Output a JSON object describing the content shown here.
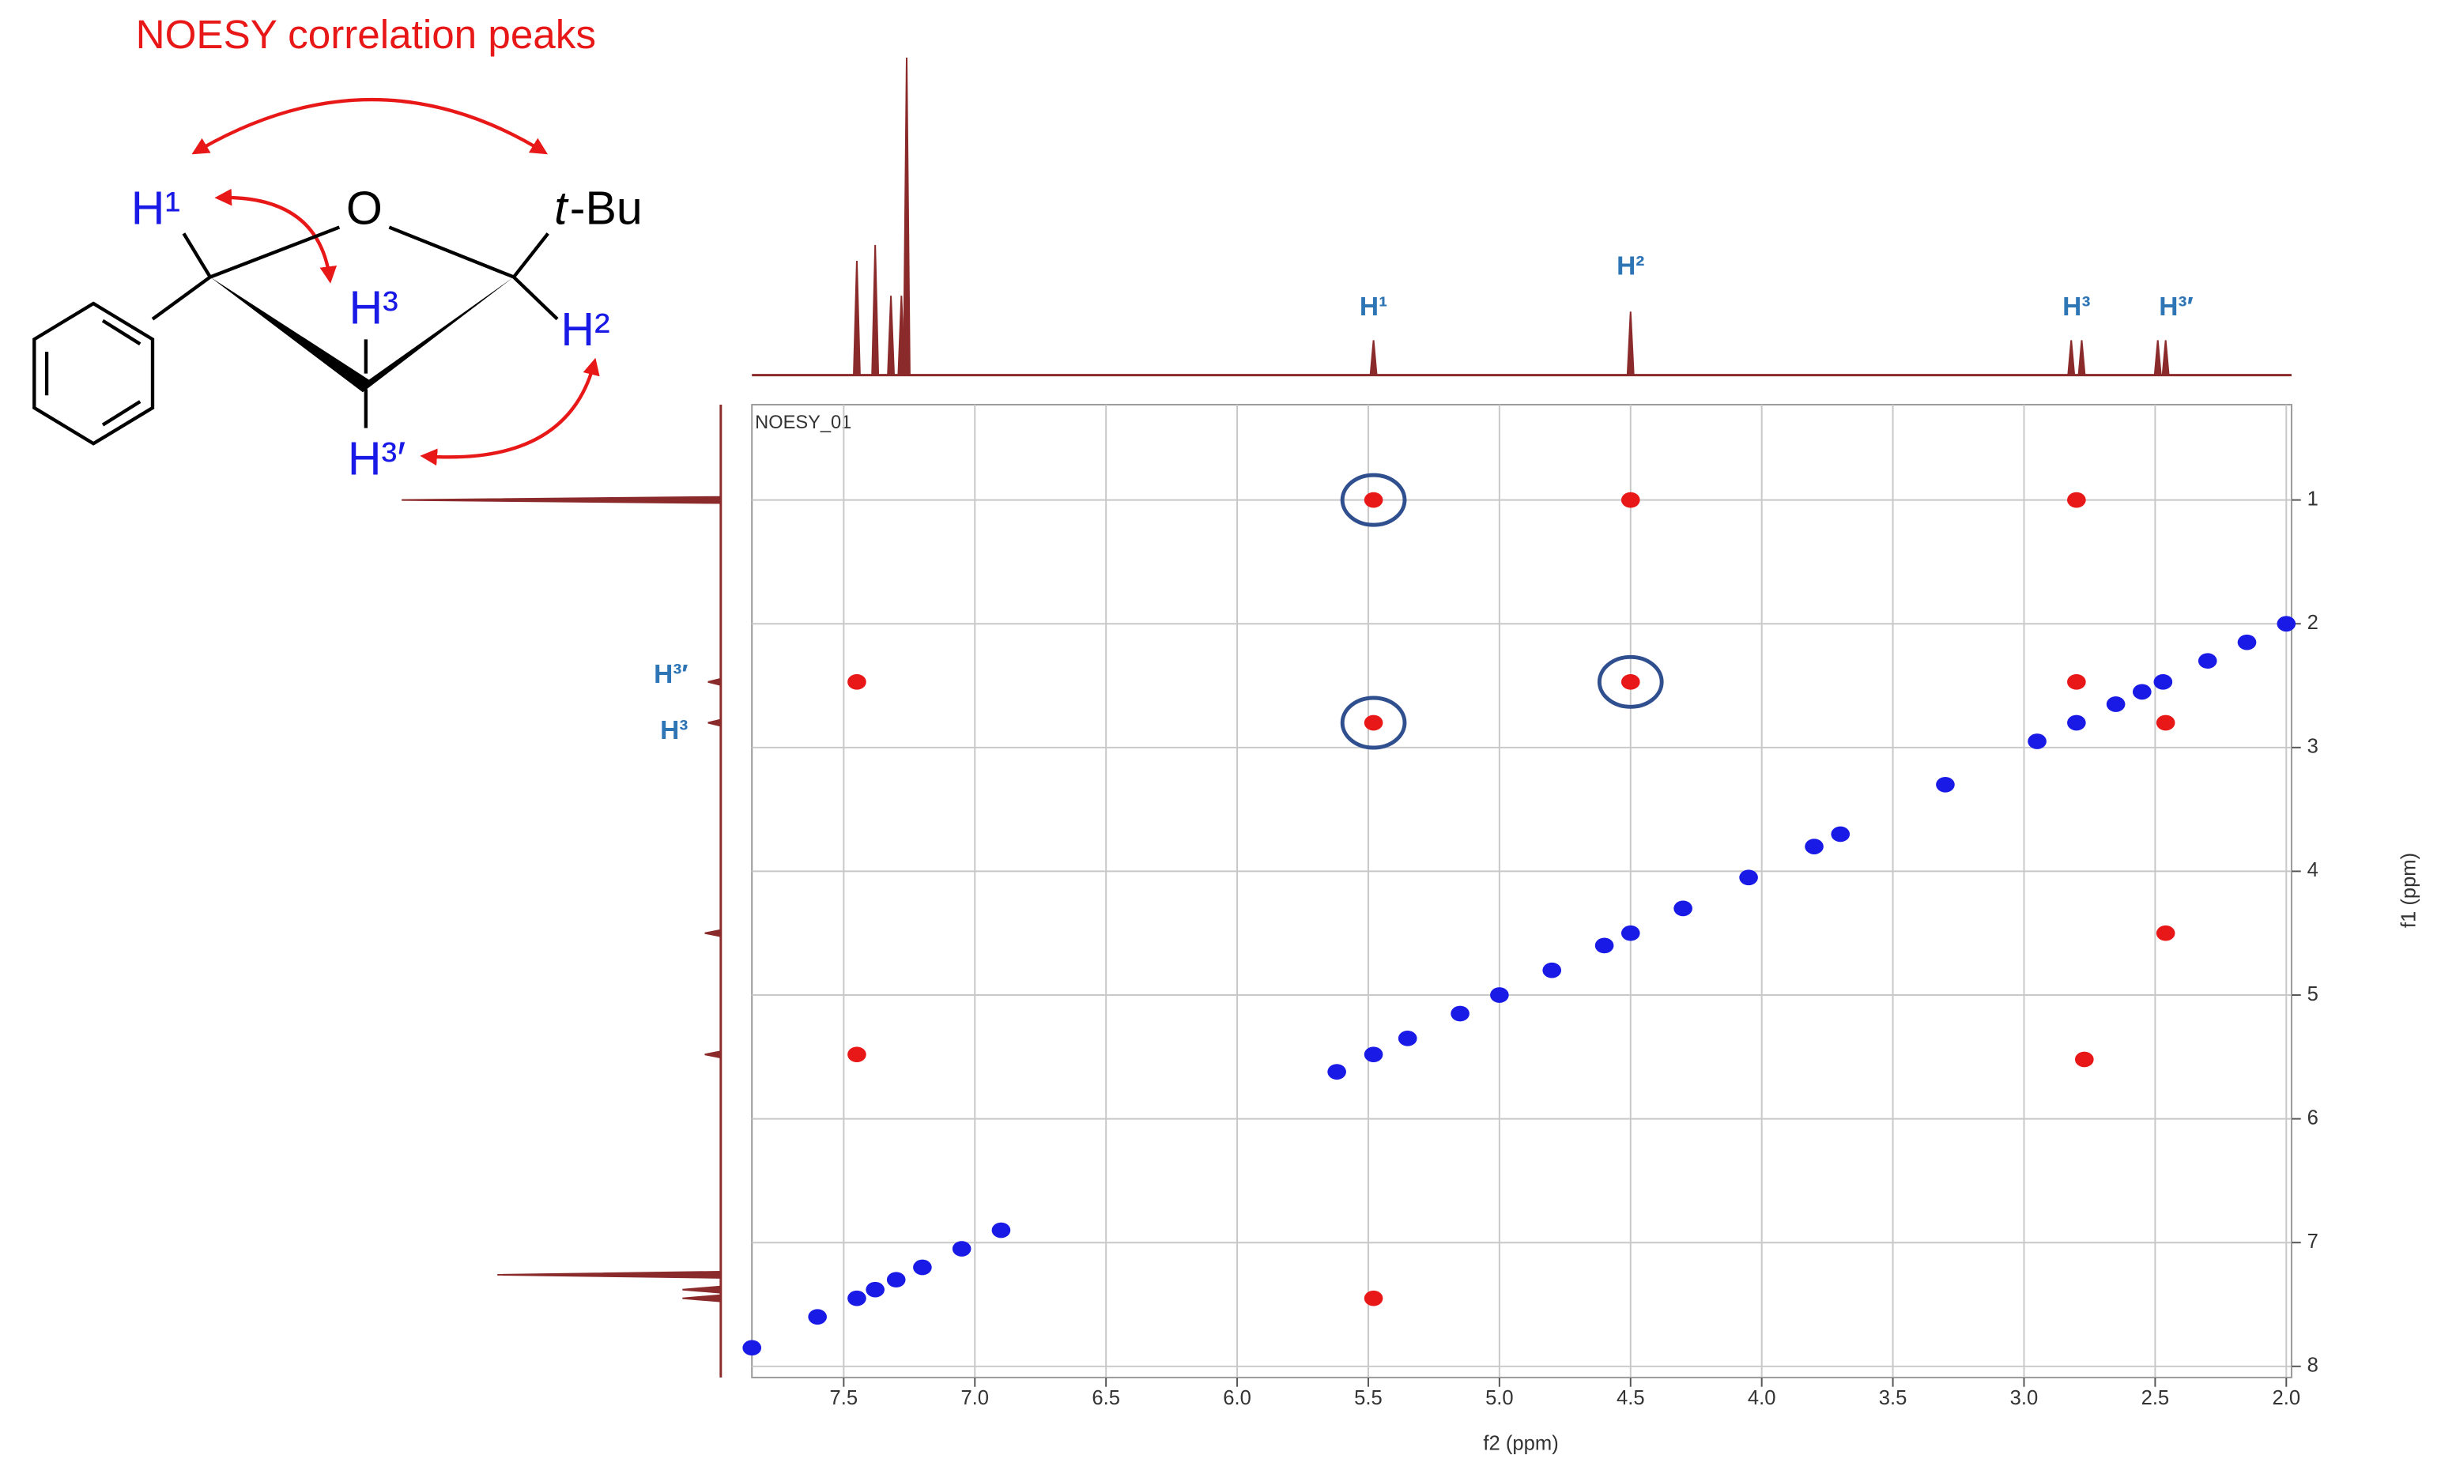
{
  "chart_data": {
    "type": "scatter",
    "title": "NOESY correlation peaks",
    "plot_label": "NOESY_01",
    "x_label": "f2 (ppm)",
    "y_label": "f1 (ppm)",
    "xlim": [
      7.85,
      1.98
    ],
    "ylim": [
      0.23,
      8.09
    ],
    "xticks": [
      {
        "value": 7.5,
        "label": "7.5"
      },
      {
        "value": 7,
        "label": "7.0"
      },
      {
        "value": 6.5,
        "label": "6.5"
      },
      {
        "value": 6,
        "label": "6.0"
      },
      {
        "value": 5.5,
        "label": "5.5"
      },
      {
        "value": 5,
        "label": "5.0"
      },
      {
        "value": 4.5,
        "label": "4.5"
      },
      {
        "value": 4,
        "label": "4.0"
      },
      {
        "value": 3.5,
        "label": "3.5"
      },
      {
        "value": 3,
        "label": "3.0"
      },
      {
        "value": 2.5,
        "label": "2.5"
      },
      {
        "value": 2,
        "label": "2.0"
      }
    ],
    "yticks": [
      1,
      2,
      3,
      4,
      5,
      6,
      7,
      8
    ],
    "grid": true,
    "series": [
      {
        "color": "#1a1ae6",
        "x": [
          7.85,
          7.6,
          7.45,
          7.38,
          7.3,
          7.2,
          7.05,
          6.9,
          5.62,
          5.48,
          5.35,
          5.15,
          5.0,
          4.8,
          4.6,
          4.5,
          4.3,
          4.05,
          3.8,
          3.7,
          3.3,
          2.95,
          2.8,
          2.65,
          2.55,
          2.47,
          2.3,
          2.15,
          2.0
        ],
        "values": [
          7.85,
          7.6,
          7.45,
          7.38,
          7.3,
          7.2,
          7.05,
          6.9,
          5.62,
          5.48,
          5.35,
          5.15,
          5.0,
          4.8,
          4.6,
          4.5,
          4.3,
          4.05,
          3.8,
          3.7,
          3.3,
          2.95,
          2.8,
          2.65,
          2.55,
          2.47,
          2.3,
          2.15,
          2.0
        ]
      },
      {
        "color": "#e81818",
        "x": [
          5.48,
          4.5,
          2.8,
          5.48,
          4.5,
          2.8,
          2.46,
          7.45,
          7.45,
          2.77,
          2.46,
          5.48
        ],
        "values": [
          1.0,
          1.0,
          1.0,
          2.8,
          2.47,
          2.47,
          2.8,
          2.47,
          5.48,
          5.52,
          4.5,
          7.45
        ],
        "highlighted": [
          0,
          3,
          4
        ]
      }
    ],
    "f2_projection": {
      "color": "#8b2a2a",
      "x": [
        7.45,
        7.38,
        7.32,
        7.28,
        7.26,
        5.48,
        4.5,
        2.82,
        2.78,
        2.49,
        2.46
      ],
      "values": [
        36,
        41,
        25,
        25,
        100,
        11,
        20,
        11,
        11,
        11,
        11
      ],
      "labels": [
        "H¹",
        "H²",
        "H³",
        "H³′"
      ],
      "label_x": [
        5.48,
        4.5,
        2.8,
        2.42
      ]
    },
    "f1_projection": {
      "color": "#8b2a2a",
      "y": [
        1.0,
        2.47,
        2.8,
        4.5,
        5.48,
        7.26,
        7.38,
        7.45
      ],
      "values": [
        100,
        4,
        4,
        5,
        5,
        70,
        12,
        12
      ],
      "labels": [
        "H³′",
        "H³"
      ],
      "label_y": [
        2.47,
        2.8
      ]
    },
    "molecule": {
      "H1": "H¹",
      "O": "O",
      "tbu_italic": "t",
      "tbu": "-Bu",
      "H3": "H³",
      "H2": "H²",
      "H3p": "H³′"
    }
  }
}
